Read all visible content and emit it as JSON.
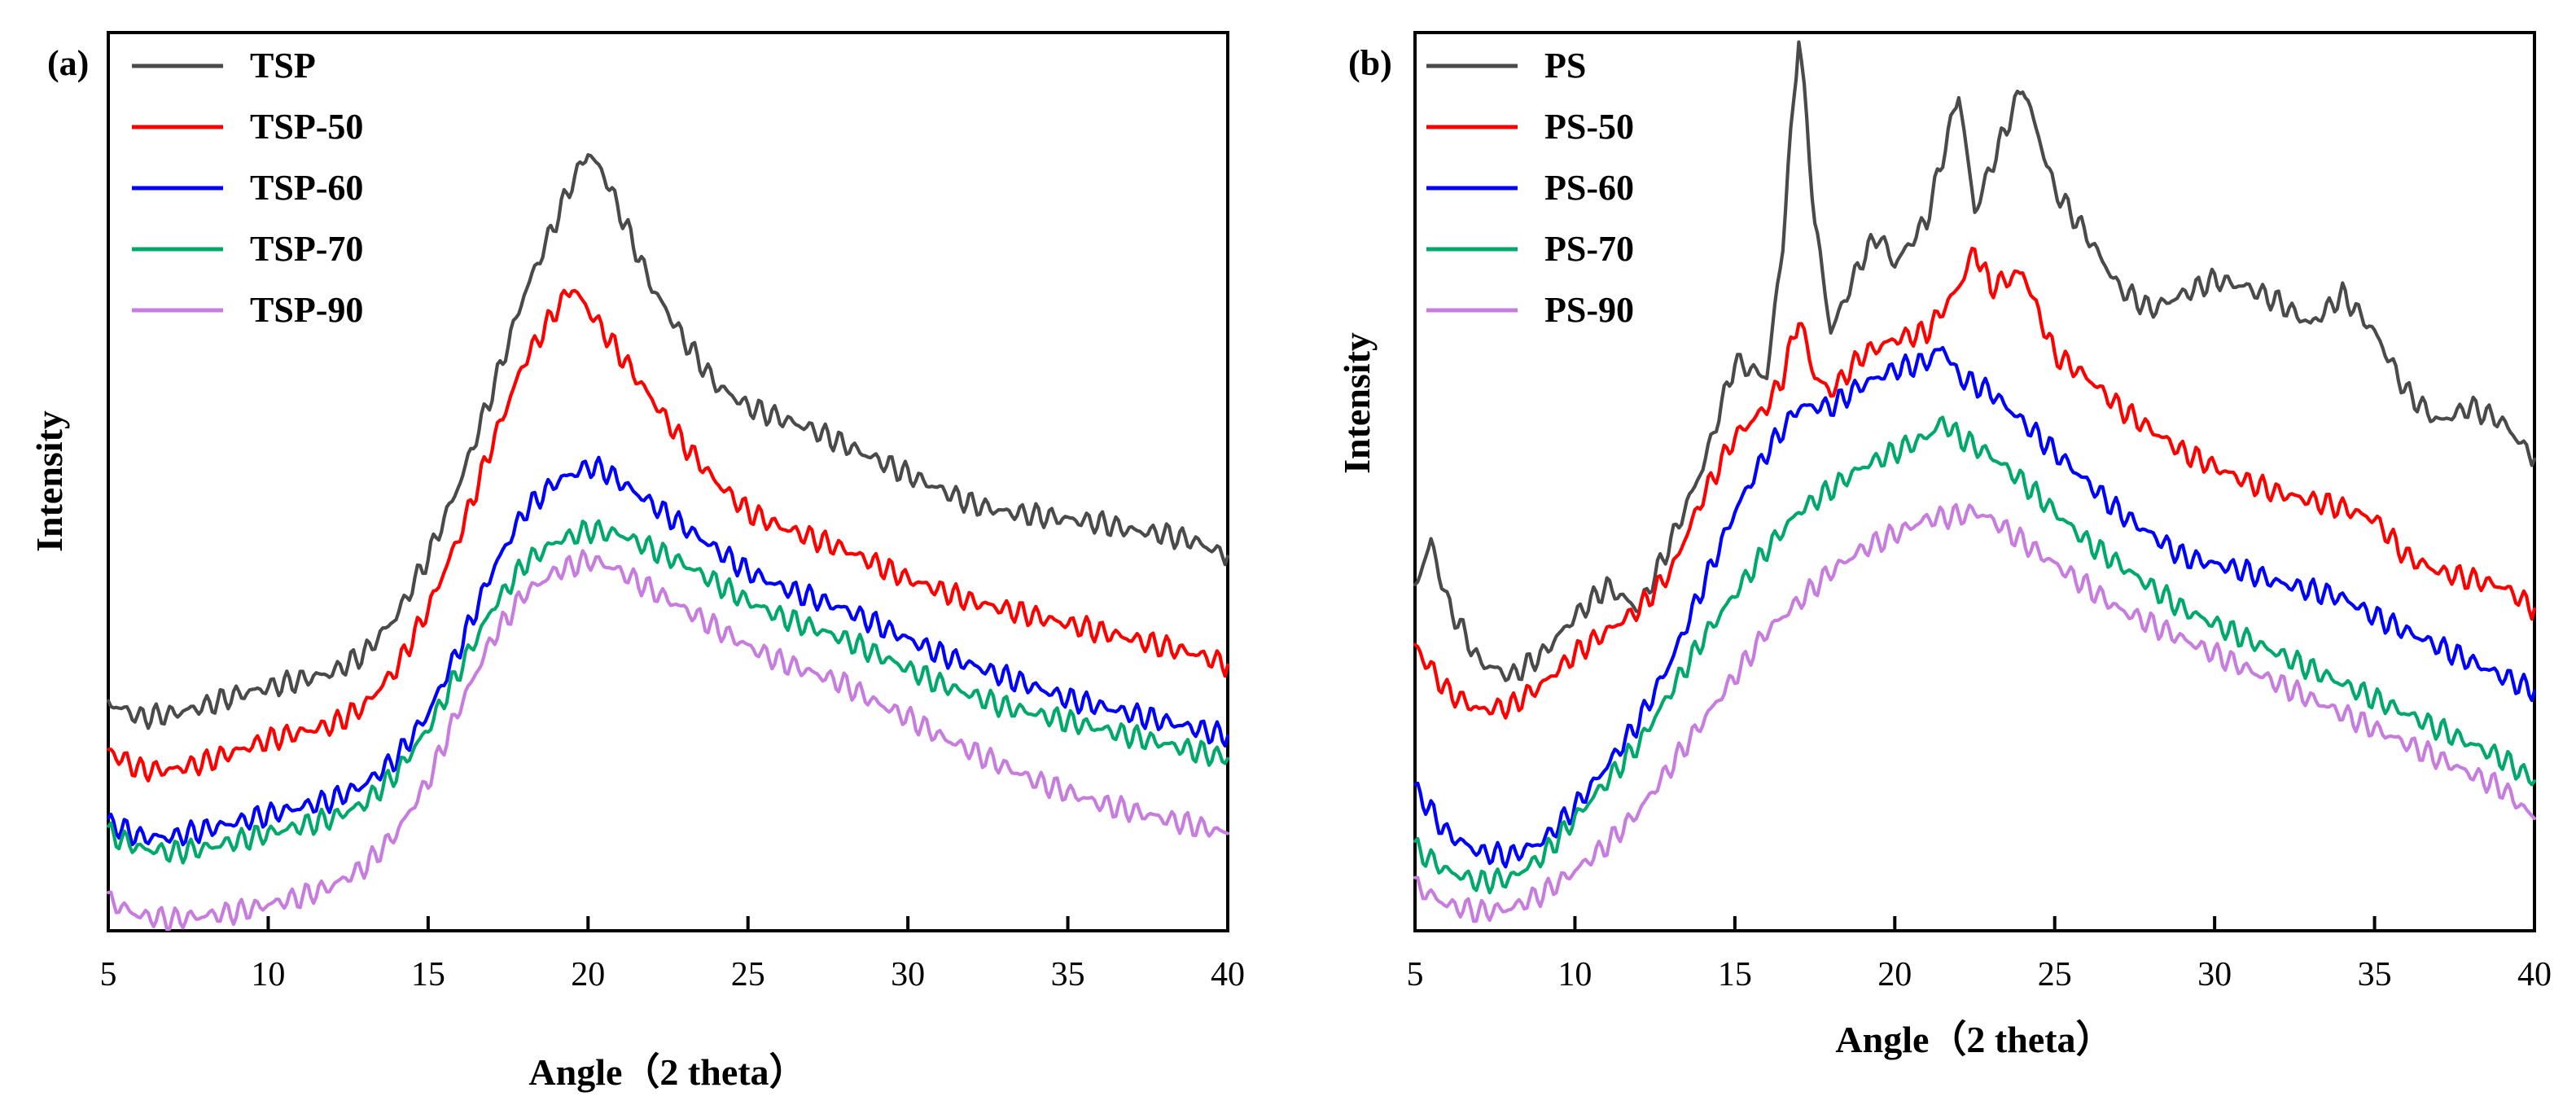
{
  "chart_data": [
    {
      "type": "line",
      "panel_label": "(a)",
      "title": "",
      "xlabel": "Angle（2 theta）",
      "ylabel": "Intensity",
      "xlim": [
        5,
        40
      ],
      "ylim": [
        0,
        1.2
      ],
      "xticks": [
        "5",
        "10",
        "15",
        "20",
        "25",
        "30",
        "35",
        "40"
      ],
      "legend_position": "top-left",
      "grid": false,
      "series": [
        {
          "name": "TSP",
          "color": "#4a4a4a",
          "x": [
            5,
            6,
            7,
            8,
            9,
            10,
            11,
            12,
            13,
            14,
            15,
            16,
            17,
            18,
            19,
            19.5,
            20,
            20.5,
            21,
            22,
            23,
            24,
            25,
            26,
            27,
            28,
            29,
            30,
            31,
            32,
            33,
            34,
            35,
            36,
            37,
            38,
            39,
            40
          ],
          "y": [
            0.305,
            0.285,
            0.29,
            0.3,
            0.315,
            0.325,
            0.335,
            0.345,
            0.37,
            0.42,
            0.5,
            0.6,
            0.72,
            0.85,
            0.95,
            1.0,
            1.04,
            1.01,
            0.96,
            0.86,
            0.79,
            0.73,
            0.7,
            0.685,
            0.67,
            0.65,
            0.63,
            0.61,
            0.59,
            0.57,
            0.56,
            0.555,
            0.55,
            0.545,
            0.535,
            0.53,
            0.52,
            0.5
          ]
        },
        {
          "name": "TSP-50",
          "color": "#ff0000",
          "x": [
            5,
            6,
            7,
            8,
            9,
            10,
            11,
            12,
            13,
            14,
            15,
            16,
            17,
            18,
            19,
            19.5,
            20,
            21,
            22,
            23,
            24,
            25,
            26,
            27,
            28,
            29,
            30,
            31,
            32,
            33,
            34,
            35,
            36,
            37,
            38,
            39,
            40
          ],
          "y": [
            0.24,
            0.215,
            0.215,
            0.225,
            0.24,
            0.255,
            0.265,
            0.275,
            0.3,
            0.35,
            0.43,
            0.53,
            0.65,
            0.76,
            0.83,
            0.86,
            0.83,
            0.77,
            0.71,
            0.65,
            0.6,
            0.56,
            0.54,
            0.525,
            0.51,
            0.49,
            0.47,
            0.455,
            0.44,
            0.43,
            0.42,
            0.41,
            0.4,
            0.39,
            0.38,
            0.37,
            0.355
          ]
        },
        {
          "name": "TSP-60",
          "color": "#0000ff",
          "x": [
            5,
            6,
            7,
            8,
            9,
            10,
            11,
            12,
            13,
            14,
            15,
            16,
            17,
            18,
            19,
            20,
            20.5,
            21,
            22,
            23,
            24,
            25,
            26,
            27,
            28,
            29,
            30,
            31,
            32,
            33,
            34,
            35,
            36,
            37,
            38,
            39,
            40
          ],
          "y": [
            0.145,
            0.125,
            0.125,
            0.135,
            0.145,
            0.155,
            0.165,
            0.175,
            0.195,
            0.23,
            0.29,
            0.38,
            0.48,
            0.56,
            0.6,
            0.62,
            0.615,
            0.6,
            0.57,
            0.54,
            0.51,
            0.48,
            0.46,
            0.445,
            0.43,
            0.41,
            0.39,
            0.37,
            0.355,
            0.34,
            0.325,
            0.31,
            0.3,
            0.29,
            0.28,
            0.27,
            0.26
          ]
        },
        {
          "name": "TSP-70",
          "color": "#00a86b",
          "x": [
            5,
            6,
            7,
            8,
            9,
            10,
            11,
            12,
            13,
            14,
            15,
            16,
            17,
            18,
            19,
            20,
            21,
            22,
            23,
            24,
            25,
            26,
            27,
            28,
            29,
            30,
            31,
            32,
            33,
            34,
            35,
            36,
            37,
            38,
            39,
            40
          ],
          "y": [
            0.13,
            0.11,
            0.105,
            0.11,
            0.12,
            0.13,
            0.14,
            0.15,
            0.17,
            0.21,
            0.27,
            0.35,
            0.43,
            0.49,
            0.52,
            0.535,
            0.53,
            0.51,
            0.49,
            0.465,
            0.44,
            0.42,
            0.405,
            0.39,
            0.37,
            0.35,
            0.33,
            0.315,
            0.3,
            0.29,
            0.28,
            0.27,
            0.26,
            0.25,
            0.24,
            0.23
          ]
        },
        {
          "name": "TSP-90",
          "color": "#c77dde",
          "x": [
            5,
            6,
            7,
            8,
            9,
            10,
            11,
            12,
            13,
            14,
            15,
            16,
            17,
            18,
            19,
            20,
            20.5,
            21,
            22,
            23,
            24,
            25,
            26,
            27,
            28,
            29,
            30,
            31,
            32,
            33,
            34,
            35,
            36,
            37,
            38,
            39,
            40
          ],
          "y": [
            0.04,
            0.02,
            0.015,
            0.02,
            0.025,
            0.035,
            0.045,
            0.06,
            0.085,
            0.13,
            0.2,
            0.3,
            0.39,
            0.45,
            0.48,
            0.495,
            0.49,
            0.48,
            0.455,
            0.43,
            0.405,
            0.38,
            0.36,
            0.345,
            0.33,
            0.305,
            0.285,
            0.26,
            0.24,
            0.22,
            0.2,
            0.185,
            0.17,
            0.16,
            0.15,
            0.14,
            0.13
          ]
        }
      ]
    },
    {
      "type": "line",
      "panel_label": "(b)",
      "title": "",
      "xlabel": "Angle（2 theta）",
      "ylabel": "Intensity",
      "xlim": [
        5,
        40
      ],
      "ylim": [
        0,
        1.2
      ],
      "xticks": [
        "5",
        "10",
        "15",
        "20",
        "25",
        "30",
        "35",
        "40"
      ],
      "legend_position": "top-left",
      "grid": false,
      "series": [
        {
          "name": "PS",
          "color": "#4a4a4a",
          "x": [
            5,
            5.5,
            6,
            7,
            8,
            9,
            10,
            11,
            12,
            13,
            14,
            15,
            16,
            16.5,
            17,
            17.5,
            18,
            19,
            19.5,
            20,
            21,
            22,
            22.5,
            23,
            24,
            25,
            26,
            27,
            28,
            29,
            30,
            31,
            32,
            33,
            34,
            35,
            36,
            37,
            38,
            39,
            40
          ],
          "y": [
            0.46,
            0.52,
            0.44,
            0.36,
            0.34,
            0.37,
            0.42,
            0.46,
            0.43,
            0.52,
            0.62,
            0.76,
            0.74,
            0.92,
            1.2,
            0.95,
            0.8,
            0.9,
            0.93,
            0.89,
            0.95,
            1.12,
            0.96,
            1.02,
            1.13,
            0.99,
            0.93,
            0.86,
            0.83,
            0.85,
            0.87,
            0.86,
            0.84,
            0.81,
            0.85,
            0.8,
            0.72,
            0.68,
            0.7,
            0.68,
            0.63
          ]
        },
        {
          "name": "PS-50",
          "color": "#ff0000",
          "x": [
            5,
            6,
            7,
            8,
            9,
            10,
            11,
            12,
            13,
            14,
            15,
            16,
            16.5,
            17,
            17.5,
            18,
            19,
            20,
            21,
            22,
            22.5,
            23,
            24,
            25,
            26,
            27,
            28,
            29,
            30,
            31,
            32,
            33,
            34,
            35,
            36,
            37,
            38,
            39,
            40
          ],
          "y": [
            0.38,
            0.32,
            0.295,
            0.3,
            0.33,
            0.37,
            0.4,
            0.43,
            0.48,
            0.58,
            0.66,
            0.7,
            0.74,
            0.82,
            0.74,
            0.72,
            0.77,
            0.79,
            0.8,
            0.86,
            0.91,
            0.86,
            0.88,
            0.77,
            0.74,
            0.7,
            0.67,
            0.64,
            0.62,
            0.6,
            0.585,
            0.575,
            0.565,
            0.55,
            0.5,
            0.48,
            0.47,
            0.46,
            0.43
          ]
        },
        {
          "name": "PS-60",
          "color": "#0000ff",
          "x": [
            5,
            6,
            7,
            8,
            9,
            10,
            11,
            12,
            13,
            14,
            15,
            16,
            17,
            18,
            19,
            20,
            21,
            21.5,
            22,
            23,
            24,
            25,
            26,
            27,
            28,
            29,
            30,
            31,
            32,
            33,
            34,
            35,
            36,
            37,
            38,
            39,
            40
          ],
          "y": [
            0.19,
            0.13,
            0.105,
            0.1,
            0.12,
            0.165,
            0.22,
            0.28,
            0.36,
            0.46,
            0.56,
            0.64,
            0.7,
            0.7,
            0.73,
            0.75,
            0.76,
            0.78,
            0.74,
            0.72,
            0.68,
            0.64,
            0.6,
            0.56,
            0.53,
            0.5,
            0.49,
            0.48,
            0.465,
            0.455,
            0.445,
            0.42,
            0.4,
            0.38,
            0.36,
            0.34,
            0.32
          ]
        },
        {
          "name": "PS-70",
          "color": "#00a86b",
          "x": [
            5,
            6,
            7,
            8,
            9,
            10,
            11,
            12,
            13,
            14,
            15,
            16,
            17,
            18,
            19,
            20,
            21,
            21.5,
            22,
            23,
            24,
            25,
            26,
            27,
            28,
            29,
            30,
            31,
            32,
            33,
            34,
            35,
            36,
            37,
            38,
            39,
            40
          ],
          "y": [
            0.11,
            0.08,
            0.065,
            0.07,
            0.1,
            0.15,
            0.2,
            0.25,
            0.32,
            0.39,
            0.45,
            0.51,
            0.56,
            0.59,
            0.62,
            0.64,
            0.66,
            0.68,
            0.66,
            0.635,
            0.6,
            0.56,
            0.52,
            0.49,
            0.46,
            0.43,
            0.41,
            0.39,
            0.37,
            0.35,
            0.33,
            0.31,
            0.29,
            0.27,
            0.25,
            0.23,
            0.2
          ]
        },
        {
          "name": "PS-90",
          "color": "#c77dde",
          "x": [
            5,
            6,
            7,
            8,
            9,
            10,
            11,
            12,
            13,
            14,
            15,
            16,
            17,
            18,
            19,
            20,
            21,
            22,
            22.5,
            23,
            24,
            25,
            26,
            27,
            28,
            29,
            30,
            31,
            32,
            33,
            34,
            35,
            36,
            37,
            38,
            39,
            40
          ],
          "y": [
            0.06,
            0.035,
            0.025,
            0.03,
            0.05,
            0.08,
            0.115,
            0.16,
            0.22,
            0.28,
            0.34,
            0.4,
            0.44,
            0.48,
            0.51,
            0.53,
            0.55,
            0.555,
            0.56,
            0.55,
            0.52,
            0.49,
            0.46,
            0.43,
            0.41,
            0.39,
            0.37,
            0.35,
            0.33,
            0.31,
            0.29,
            0.27,
            0.25,
            0.23,
            0.21,
            0.19,
            0.15
          ]
        }
      ]
    }
  ]
}
